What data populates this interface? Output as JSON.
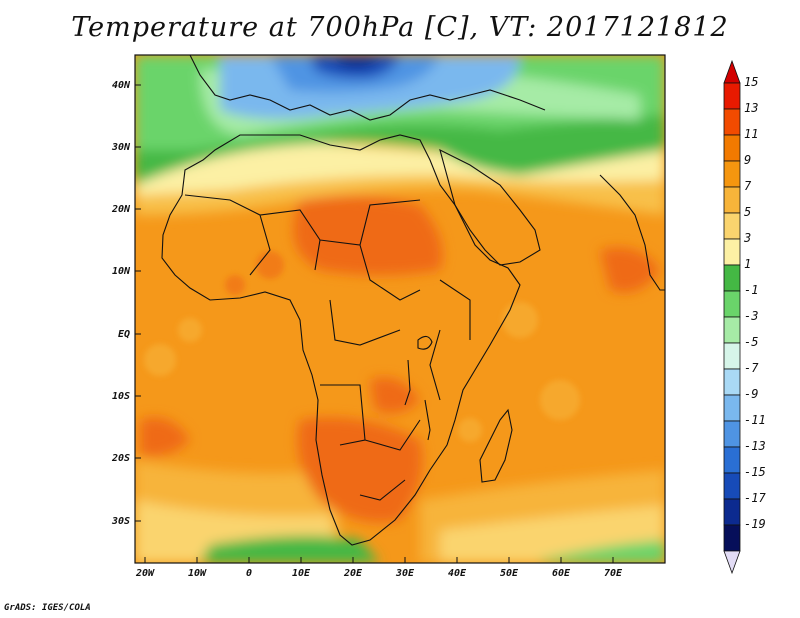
{
  "title": "Temperature at 700hPa [C], VT: 2017121812",
  "credit": "GrADS: IGES/COLA",
  "lat_ticks": [
    "40N",
    "30N",
    "20N",
    "10N",
    "EQ",
    "10S",
    "20S",
    "30S"
  ],
  "lon_ticks": [
    "20W",
    "10W",
    "0",
    "10E",
    "20E",
    "30E",
    "40E",
    "50E",
    "60E",
    "70E"
  ],
  "colorbar": {
    "labels": [
      "15",
      "13",
      "11",
      "9",
      "7",
      "5",
      "3",
      "1",
      "-1",
      "-3",
      "-5",
      "-7",
      "-9",
      "-11",
      "-13",
      "-15",
      "-17",
      "-19"
    ],
    "colors": [
      "#e81a00",
      "#f24b00",
      "#f27a00",
      "#f5960f",
      "#f7b43a",
      "#fad46e",
      "#fcf0a4",
      "#44b844",
      "#6ad46a",
      "#a6eba6",
      "#d6f5e9",
      "#a9d9f5",
      "#7ab8ee",
      "#4f94e3",
      "#2a6fd4",
      "#174bb8",
      "#0c2a8f",
      "#060f5a"
    ]
  },
  "map": {
    "ocean_color": "#f59a1a",
    "warm_core_color": "#ef6a12",
    "sahara_color": "#f8c04a",
    "cool_north_color": "#3db84a",
    "cold_europe_color": "#7fb6ec",
    "deep_cold_color": "#1a3aa8",
    "border_color": "#111111"
  }
}
